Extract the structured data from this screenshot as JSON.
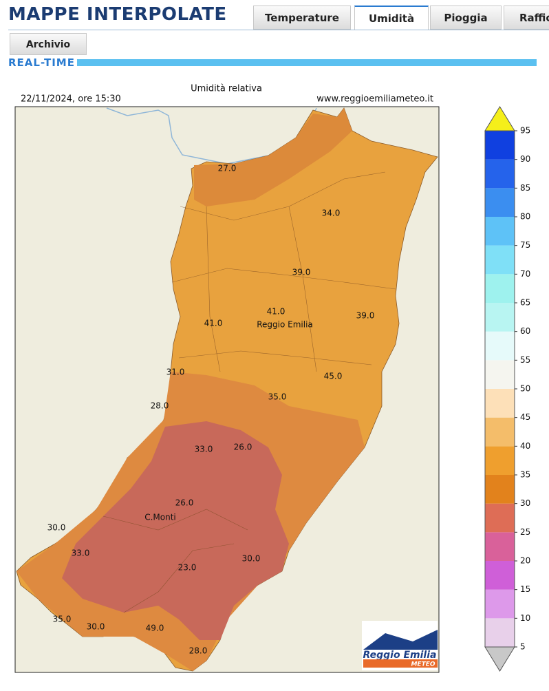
{
  "header": {
    "title": "MAPPE INTERPOLATE",
    "tabs": [
      "Temperature",
      "Umidità",
      "Pioggia",
      "Raffic"
    ],
    "subtab": "Archivio",
    "section": "REAL-TIME"
  },
  "map": {
    "title": "Umidità relativa",
    "date": "22/11/2024, ore 15:30",
    "site": "www.reggioemiliameteo.it",
    "values": [
      "27.0",
      "34.0",
      "39.0",
      "41.0",
      "39.0",
      "41.0",
      "31.0",
      "45.0",
      "35.0",
      "28.0",
      "33.0",
      "26.0",
      "26.0",
      "30.0",
      "33.0",
      "30.0",
      "23.0",
      "35.0",
      "30.0",
      "49.0",
      "28.0"
    ],
    "places": [
      "Reggio Emilia",
      "C.Monti"
    ],
    "logo": [
      "Reggio Emilia",
      "METEO"
    ]
  },
  "colorbar": {
    "ticks": [
      5,
      10,
      15,
      20,
      25,
      30,
      35,
      40,
      45,
      50,
      55,
      60,
      65,
      70,
      75,
      80,
      85,
      90,
      95
    ],
    "colors": [
      "#e8d0ea",
      "#dd99ea",
      "#cf5fd8",
      "#d9619a",
      "#de6d56",
      "#e2821c",
      "#ef9f2e",
      "#f4bd6a",
      "#fde0b8",
      "#f5f5ef",
      "#e6fafa",
      "#b8f5f2",
      "#9ef2ee",
      "#7fe0f7",
      "#5ec2f7",
      "#3b8ef0",
      "#2563eb",
      "#1040e0"
    ],
    "over_color": "#f5ef1a",
    "under_color": "#c8c8c8"
  }
}
